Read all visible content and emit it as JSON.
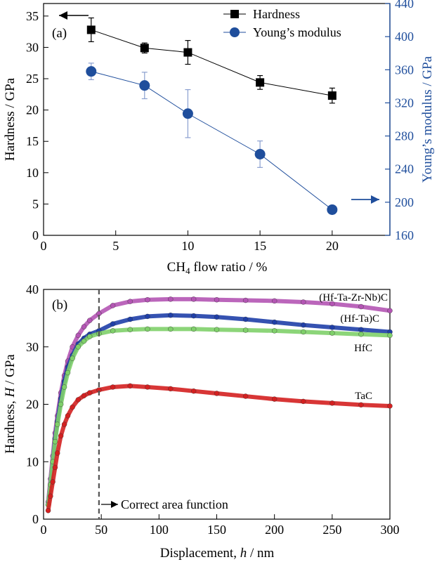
{
  "chart_data": [
    {
      "type": "line",
      "panel_label": "(a)",
      "xlabel_main": "CH",
      "xlabel_sub": "4",
      "xlabel_rest": " flow ratio / %",
      "ylabel_left": "Hardness / GPa",
      "ylabel_right": "Young’s modulus / GPa",
      "xlim": [
        0,
        24
      ],
      "ylim_left": [
        0,
        37
      ],
      "ylim_right": [
        160,
        440
      ],
      "x_ticks": [
        "0",
        "5",
        "10",
        "15",
        "20"
      ],
      "y_ticks_left": [
        "0",
        "5",
        "10",
        "15",
        "20",
        "25",
        "30",
        "35"
      ],
      "y_ticks_right": [
        "160",
        "200",
        "240",
        "280",
        "320",
        "360",
        "400",
        "440"
      ],
      "legend_position": "top-right",
      "series": [
        {
          "name": "Hardness",
          "axis": "left",
          "color": "#000000",
          "marker": "square",
          "x": [
            3.3,
            7,
            10,
            15,
            20
          ],
          "y": [
            32.8,
            29.9,
            29.2,
            24.4,
            22.3
          ],
          "yerr": [
            1.9,
            0.8,
            1.9,
            1.1,
            1.2
          ]
        },
        {
          "name": "Young’s modulus",
          "axis": "right",
          "color": "#1f4e9c",
          "marker": "circle",
          "x": [
            3.3,
            7,
            10,
            15,
            20
          ],
          "y": [
            358,
            341,
            307,
            258,
            191
          ],
          "yerr": [
            10,
            16,
            29,
            16,
            0
          ]
        }
      ],
      "arrows": [
        {
          "direction": "left",
          "axis_side": "left",
          "color": "#000000"
        },
        {
          "direction": "right",
          "axis_side": "right",
          "color": "#1f4e9c"
        }
      ]
    },
    {
      "type": "scatter",
      "panel_label": "(b)",
      "xlabel_main": "Displacement, ",
      "xlabel_italic": "h",
      "xlabel_rest": " / nm",
      "ylabel_main": "Hardness, ",
      "ylabel_italic": "H",
      "ylabel_rest": " / GPa",
      "xlim": [
        0,
        300
      ],
      "ylim": [
        0,
        40
      ],
      "x_ticks": [
        "0",
        "50",
        "100",
        "150",
        "200",
        "250",
        "300"
      ],
      "y_ticks": [
        "0",
        "10",
        "20",
        "30",
        "40"
      ],
      "vline": {
        "x": 48,
        "style": "dashed",
        "label": "Correct area function"
      },
      "series": [
        {
          "name": "(Hf-Ta-Zr-Nb)C",
          "color": "#b455b4",
          "x": [
            4,
            6,
            8,
            10,
            12,
            15,
            18,
            21,
            25,
            30,
            35,
            40,
            48,
            60,
            75,
            90,
            110,
            130,
            150,
            175,
            200,
            225,
            250,
            275,
            300
          ],
          "y": [
            3,
            7,
            11,
            15,
            18,
            22,
            25,
            27.5,
            30,
            32,
            33.5,
            34.6,
            35.8,
            37.2,
            37.9,
            38.2,
            38.3,
            38.3,
            38.2,
            38.1,
            38.0,
            37.8,
            37.5,
            37.0,
            36.3
          ]
        },
        {
          "name": "(Hf-Ta)C",
          "color": "#1f3fa8",
          "x": [
            4,
            6,
            8,
            10,
            12,
            15,
            18,
            21,
            25,
            30,
            35,
            40,
            48,
            60,
            75,
            90,
            110,
            130,
            150,
            175,
            200,
            225,
            250,
            275,
            300
          ],
          "y": [
            2.5,
            6,
            10,
            14,
            17,
            21,
            24,
            26.5,
            28.5,
            30.5,
            31.5,
            32.2,
            32.8,
            34,
            34.8,
            35.3,
            35.5,
            35.4,
            35.2,
            34.8,
            34.3,
            33.8,
            33.4,
            33.0,
            32.6
          ]
        },
        {
          "name": "HfC",
          "color": "#7fd06a",
          "x": [
            4,
            6,
            8,
            10,
            12,
            15,
            18,
            21,
            25,
            30,
            35,
            40,
            48,
            60,
            75,
            90,
            110,
            130,
            150,
            175,
            200,
            225,
            250,
            275,
            300
          ],
          "y": [
            2.5,
            6,
            10,
            13.5,
            16.5,
            20,
            23,
            25.5,
            28,
            30,
            31,
            31.8,
            32.3,
            32.8,
            33,
            33.1,
            33.1,
            33.1,
            33.0,
            32.9,
            32.8,
            32.6,
            32.4,
            32.2,
            32.0
          ]
        },
        {
          "name": "TaC",
          "color": "#d42020",
          "x": [
            4,
            6,
            8,
            10,
            12,
            15,
            18,
            21,
            25,
            30,
            35,
            40,
            48,
            60,
            75,
            90,
            110,
            130,
            150,
            175,
            200,
            225,
            250,
            275,
            300
          ],
          "y": [
            1.5,
            4,
            6.5,
            9,
            11.5,
            14.5,
            16.5,
            18,
            19.5,
            20.8,
            21.5,
            22.0,
            22.5,
            23.0,
            23.2,
            23.0,
            22.7,
            22.3,
            21.9,
            21.4,
            20.9,
            20.5,
            20.2,
            19.9,
            19.7
          ]
        }
      ]
    }
  ]
}
